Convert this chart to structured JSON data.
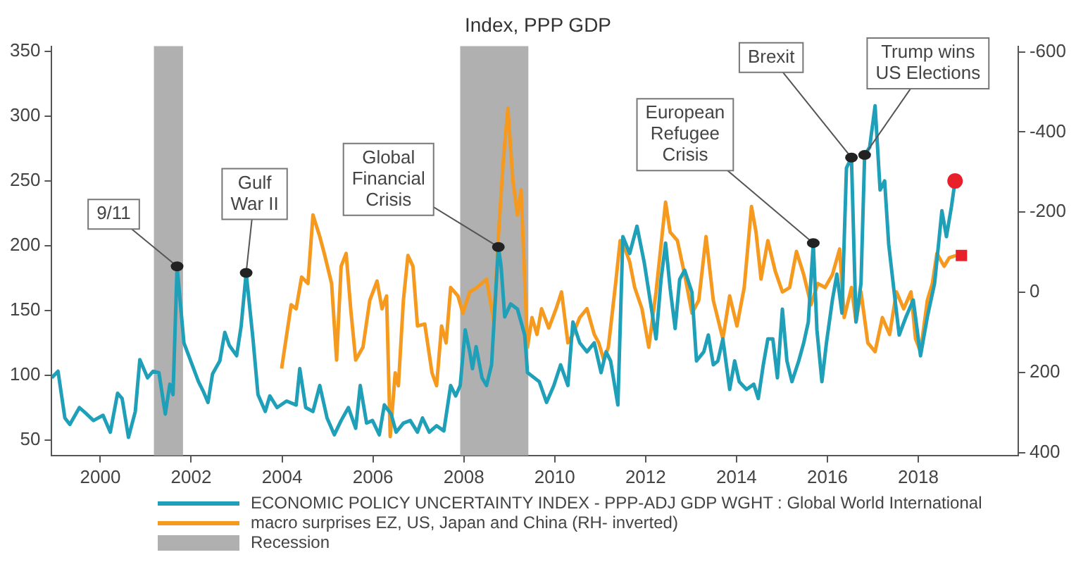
{
  "chart_data": {
    "type": "line",
    "title": "Index, PPP GDP",
    "legend": "bottom",
    "grid": false,
    "marker": "none",
    "line_style": "solid",
    "xlim": [
      1998.93,
      2020.2
    ],
    "xticks": [
      2000,
      2002,
      2004,
      2006,
      2008,
      2010,
      2012,
      2014,
      2016,
      2018
    ],
    "ylim": [
      38,
      354
    ],
    "yticks": [
      50,
      100,
      150,
      200,
      250,
      300,
      350
    ],
    "y2lim": [
      407,
      -614
    ],
    "y2ticks": [
      -600,
      -400,
      -200,
      0,
      200,
      400
    ],
    "series": [
      {
        "name": "ECONOMIC POLICY UNCERTAINTY INDEX - PPP-ADJ GDP WGHT : Global World International",
        "color": "#1fa0b8",
        "x": [
          1998.93,
          1999.07,
          1999.22,
          1999.33,
          1999.54,
          1999.7,
          1999.85,
          2000.06,
          2000.22,
          2000.38,
          2000.48,
          2000.62,
          2000.77,
          2000.87,
          2001.04,
          2001.16,
          2001.29,
          2001.43,
          2001.53,
          2001.6,
          2001.69,
          2001.84,
          2002,
          2002.16,
          2002.26,
          2002.37,
          2002.47,
          2002.63,
          2002.74,
          2002.84,
          2003,
          2003.1,
          2003.21,
          2003.36,
          2003.47,
          2003.63,
          2003.73,
          2003.89,
          2004.1,
          2004.31,
          2004.39,
          2004.52,
          2004.68,
          2004.83,
          2004.99,
          2005.15,
          2005.3,
          2005.46,
          2005.62,
          2005.72,
          2005.86,
          2005.99,
          2006.14,
          2006.25,
          2006.4,
          2006.51,
          2006.67,
          2006.82,
          2006.98,
          2007.09,
          2007.24,
          2007.4,
          2007.56,
          2007.71,
          2007.82,
          2007.92,
          2008.03,
          2008.13,
          2008.19,
          2008.27,
          2008.4,
          2008.5,
          2008.61,
          2008.76,
          2008.82,
          2008.9,
          2009.03,
          2009.18,
          2009.34,
          2009.4,
          2009.66,
          2009.82,
          2009.98,
          2010.13,
          2010.29,
          2010.4,
          2010.55,
          2010.71,
          2010.87,
          2011.02,
          2011.13,
          2011.23,
          2011.39,
          2011.5,
          2011.65,
          2011.81,
          2011.97,
          2012.13,
          2012.23,
          2012.34,
          2012.44,
          2012.54,
          2012.65,
          2012.75,
          2012.86,
          2013.02,
          2013.12,
          2013.28,
          2013.38,
          2013.49,
          2013.59,
          2013.7,
          2013.85,
          2013.96,
          2014.06,
          2014.22,
          2014.38,
          2014.48,
          2014.59,
          2014.69,
          2014.8,
          2014.9,
          2015.01,
          2015.11,
          2015.22,
          2015.37,
          2015.48,
          2015.58,
          2015.69,
          2015.77,
          2015.88,
          2015.98,
          2016.11,
          2016.21,
          2016.32,
          2016.42,
          2016.53,
          2016.63,
          2016.74,
          2016.82,
          2016.93,
          2017.05,
          2017.16,
          2017.26,
          2017.35,
          2017.47,
          2017.58,
          2017.73,
          2017.89,
          2018.05,
          2018.2,
          2018.36,
          2018.52,
          2018.62,
          2018.73,
          2018.81
        ],
        "values": [
          98,
          103,
          67,
          62,
          75,
          70,
          65,
          69,
          56,
          86,
          82,
          52,
          72,
          112,
          98,
          103,
          102,
          70,
          93,
          85,
          184,
          125,
          110,
          95,
          88,
          79,
          101,
          111,
          133,
          123,
          115,
          138,
          179,
          128,
          85,
          72,
          84,
          75,
          80,
          77,
          105,
          75,
          72,
          92,
          67,
          54,
          65,
          75,
          59,
          92,
          63,
          65,
          54,
          77,
          70,
          56,
          63,
          65,
          56,
          67,
          56,
          61,
          57,
          92,
          84,
          92,
          135,
          118,
          105,
          122,
          98,
          92,
          108,
          199,
          184,
          145,
          155,
          151,
          131,
          102,
          95,
          79,
          92,
          108,
          92,
          141,
          125,
          118,
          125,
          102,
          118,
          111,
          77,
          207,
          194,
          215,
          187,
          151,
          128,
          174,
          202,
          167,
          136,
          174,
          181,
          164,
          111,
          118,
          131,
          108,
          111,
          128,
          89,
          111,
          95,
          89,
          93,
          82,
          108,
          128,
          128,
          98,
          151,
          111,
          95,
          111,
          125,
          141,
          202,
          135,
          95,
          125,
          158,
          178,
          148,
          260,
          268,
          141,
          171,
          270,
          276,
          308,
          243,
          250,
          201,
          164,
          131,
          145,
          158,
          115,
          145,
          171,
          227,
          207,
          230,
          250
        ]
      },
      {
        "name": "macro surprises EZ, US, Japan and China (RH- inverted)",
        "color": "#f59a1f",
        "axis": "y2",
        "x": [
          2003.99,
          2004.2,
          2004.31,
          2004.43,
          2004.57,
          2004.68,
          2004.83,
          2004.94,
          2005.09,
          2005.2,
          2005.3,
          2005.41,
          2005.51,
          2005.62,
          2005.78,
          2005.93,
          2006.09,
          2006.2,
          2006.3,
          2006.38,
          2006.49,
          2006.56,
          2006.67,
          2006.77,
          2006.88,
          2006.98,
          2007.14,
          2007.3,
          2007.4,
          2007.51,
          2007.61,
          2007.71,
          2007.87,
          2007.98,
          2008.13,
          2008.29,
          2008.5,
          2008.66,
          2008.76,
          2008.87,
          2008.97,
          2009.08,
          2009.18,
          2009.26,
          2009.4,
          2009.5,
          2009.61,
          2009.71,
          2009.87,
          2010.03,
          2010.15,
          2010.29,
          2010.4,
          2010.55,
          2010.71,
          2010.87,
          2010.97,
          2011.08,
          2011.18,
          2011.34,
          2011.44,
          2011.55,
          2011.65,
          2011.76,
          2011.92,
          2012.07,
          2012.23,
          2012.44,
          2012.54,
          2012.7,
          2012.86,
          2013.02,
          2013.17,
          2013.33,
          2013.49,
          2013.7,
          2013.85,
          2014.01,
          2014.17,
          2014.33,
          2014.43,
          2014.54,
          2014.69,
          2014.85,
          2015.01,
          2015.17,
          2015.32,
          2015.48,
          2015.64,
          2015.79,
          2015.95,
          2016.11,
          2016.27,
          2016.37,
          2016.53,
          2016.63,
          2016.74,
          2016.89,
          2017.05,
          2017.21,
          2017.37,
          2017.52,
          2017.68,
          2017.84,
          2017.94,
          2018.05,
          2018.2,
          2018.31,
          2018.41,
          2018.57,
          2018.68,
          2018.83
        ],
        "values": [
          190,
          31,
          41,
          -38,
          -22,
          -193,
          -139,
          -92,
          -22,
          169,
          -65,
          -97,
          41,
          169,
          137,
          20,
          -28,
          41,
          9,
          360,
          201,
          233,
          20,
          -92,
          -65,
          84,
          79,
          201,
          233,
          84,
          126,
          -12,
          9,
          52,
          -1,
          -12,
          -33,
          73,
          -139,
          -331,
          -459,
          -278,
          -193,
          -256,
          137,
          63,
          105,
          41,
          89,
          41,
          -1,
          126,
          105,
          63,
          41,
          105,
          126,
          169,
          137,
          -22,
          -129,
          -108,
          -76,
          -12,
          41,
          137,
          -1,
          -225,
          -150,
          -129,
          -44,
          52,
          20,
          -139,
          20,
          116,
          9,
          84,
          -12,
          -214,
          -150,
          -33,
          -129,
          -54,
          -1,
          -12,
          -102,
          -44,
          31,
          -22,
          -12,
          -44,
          -108,
          63,
          -12,
          73,
          -1,
          126,
          148,
          63,
          105,
          -1,
          41,
          -1,
          116,
          148,
          20,
          -22,
          -97,
          -65,
          -86,
          -92
        ]
      },
      {
        "type": "scatter",
        "color": "#e8202a",
        "marker": "circle",
        "x": [
          2018.81
        ],
        "values": [
          250
        ]
      },
      {
        "type": "scatter",
        "color": "#e8202a",
        "marker": "square",
        "axis": "y2",
        "x": [
          2018.95
        ],
        "values": [
          -92
        ]
      }
    ],
    "bands": [
      {
        "axis": "x",
        "from": 2001.18,
        "to": 2001.82,
        "label": "Recession",
        "color": "#b0b0b0"
      },
      {
        "axis": "x",
        "from": 2007.92,
        "to": 2009.42,
        "color": "#b0b0b0"
      }
    ],
    "annotations": [
      {
        "text": "9/11",
        "x": 2001.69,
        "y": 184
      },
      {
        "text": "Gulf\nWar II",
        "x": 2003.21,
        "y": 179
      },
      {
        "text": "Global\nFinancial\nCrisis",
        "x": 2008.76,
        "y": 199
      },
      {
        "text": "European\nRefugee\nCrisis",
        "x": 2015.69,
        "y": 202
      },
      {
        "text": "Brexit",
        "x": 2016.53,
        "y": 268
      },
      {
        "text": "Trump wins\nUS Elections",
        "x": 2016.82,
        "y": 270
      }
    ]
  }
}
